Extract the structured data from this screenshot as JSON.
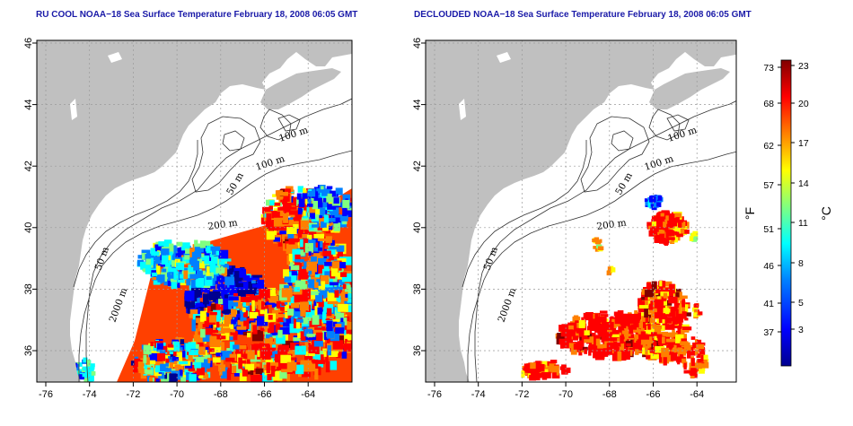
{
  "maps": [
    {
      "id": "left",
      "title": "RU COOL NOAA−18 Sea Surface Temperature February 18, 2008 06:05 GMT",
      "x_ticks": [
        "-76",
        "-74",
        "-72",
        "-70",
        "-68",
        "-66",
        "-64"
      ],
      "y_ticks": [
        "36",
        "38",
        "40",
        "42",
        "44",
        "46"
      ],
      "contour_labels": [
        "100 m",
        "100 m",
        "50 m",
        "200 m",
        "50 m",
        "2000 m"
      ]
    },
    {
      "id": "right",
      "title": "DECLOUDED NOAA−18 Sea Surface Temperature February 18, 2008 06:05 GMT",
      "x_ticks": [
        "-76",
        "-74",
        "-72",
        "-70",
        "-68",
        "-66",
        "-64"
      ],
      "y_ticks": [
        "36",
        "38",
        "40",
        "42",
        "44",
        "46"
      ],
      "contour_labels": [
        "100 m",
        "100 m",
        "50 m",
        "200 m",
        "50 m",
        "2000 m"
      ]
    }
  ],
  "colorbar": {
    "fahrenheit_ticks": [
      "73",
      "68",
      "62",
      "57",
      "51",
      "46",
      "41",
      "37"
    ],
    "celsius_ticks": [
      "23",
      "20",
      "17",
      "14",
      "11",
      "8",
      "5",
      "3"
    ],
    "fahrenheit_label": "°F",
    "celsius_label": "°C",
    "colors": [
      "#00008f",
      "#0000ff",
      "#0080ff",
      "#00ffff",
      "#80ff80",
      "#ffff00",
      "#ff8000",
      "#ff0000",
      "#800000"
    ]
  },
  "colors": {
    "land": "#c0c0c0",
    "ocean": "#ffffff",
    "grid": "#9a9a9a",
    "title": "#1a1aa8"
  }
}
